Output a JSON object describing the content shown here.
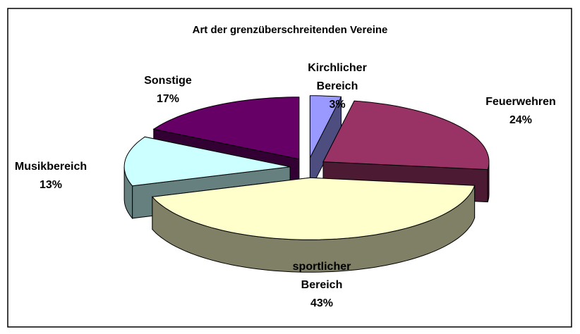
{
  "chart_data": {
    "type": "pie",
    "title": "Art der grenzüberschreitenden Vereine",
    "categories": [
      "Kirchlicher Bereich",
      "Feuerwehren",
      "sportlicher Bereich",
      "Musikbereich",
      "Sonstige"
    ],
    "values": [
      3,
      24,
      43,
      13,
      17
    ],
    "value_labels": [
      "3%",
      "24%",
      "43%",
      "13%",
      "17%"
    ],
    "colors": [
      "#9999ff",
      "#993366",
      "#ffffcc",
      "#ccffff",
      "#660066"
    ],
    "side_colors": [
      "#4d4d80",
      "#4d1a33",
      "#808066",
      "#668080",
      "#330033"
    ]
  }
}
